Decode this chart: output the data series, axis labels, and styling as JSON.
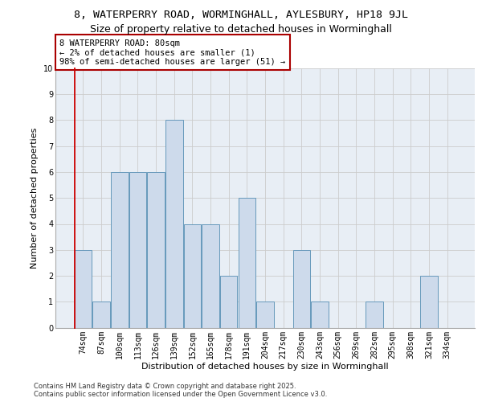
{
  "title1": "8, WATERPERRY ROAD, WORMINGHALL, AYLESBURY, HP18 9JL",
  "title2": "Size of property relative to detached houses in Worminghall",
  "xlabel": "Distribution of detached houses by size in Worminghall",
  "ylabel": "Number of detached properties",
  "categories": [
    "74sqm",
    "87sqm",
    "100sqm",
    "113sqm",
    "126sqm",
    "139sqm",
    "152sqm",
    "165sqm",
    "178sqm",
    "191sqm",
    "204sqm",
    "217sqm",
    "230sqm",
    "243sqm",
    "256sqm",
    "269sqm",
    "282sqm",
    "295sqm",
    "308sqm",
    "321sqm",
    "334sqm"
  ],
  "values": [
    3,
    1,
    6,
    6,
    6,
    8,
    4,
    4,
    2,
    5,
    1,
    0,
    3,
    1,
    0,
    0,
    1,
    0,
    0,
    2,
    0
  ],
  "bar_color": "#cddaeb",
  "bar_edge_color": "#6699bb",
  "annotation_box_color": "#ffffff",
  "annotation_box_edge": "#aa0000",
  "annotation_text": "8 WATERPERRY ROAD: 80sqm\n← 2% of detached houses are smaller (1)\n98% of semi-detached houses are larger (51) →",
  "ylim": [
    0,
    10
  ],
  "yticks": [
    0,
    1,
    2,
    3,
    4,
    5,
    6,
    7,
    8,
    9,
    10
  ],
  "grid_color": "#cccccc",
  "bg_color": "#e8eef5",
  "footer": "Contains HM Land Registry data © Crown copyright and database right 2025.\nContains public sector information licensed under the Open Government Licence v3.0.",
  "title1_fontsize": 9.5,
  "title2_fontsize": 9,
  "axis_label_fontsize": 8,
  "tick_fontsize": 7,
  "annotation_fontsize": 7.5,
  "footer_fontsize": 6,
  "redline_color": "#cc0000"
}
